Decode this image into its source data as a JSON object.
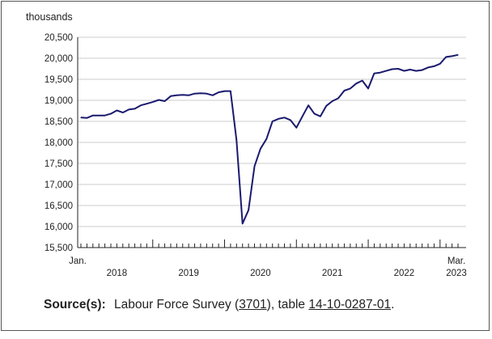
{
  "chart_data": {
    "type": "line",
    "title": "",
    "unit_label": "thousands",
    "xlabel": "",
    "ylabel": "",
    "ylim": [
      15500,
      20500
    ],
    "y_ticks": [
      "20,500",
      "20,000",
      "19,500",
      "19,000",
      "18,500",
      "18,000",
      "17,500",
      "17,000",
      "16,500",
      "16,000",
      "15,500"
    ],
    "grid": true,
    "x_start_label": "Jan.",
    "x_end_label": "Mar.",
    "x_end_year": "2023",
    "year_labels": [
      "2018",
      "2019",
      "2020",
      "2021",
      "2022"
    ],
    "series_color": "#1a1a6e",
    "series": [
      {
        "values": [
          18590,
          18580,
          18640,
          18640,
          18640,
          18680,
          18760,
          18710,
          18780,
          18800,
          18880,
          18920,
          18960,
          19010,
          18980,
          19100,
          19120,
          19130,
          19120,
          19160,
          19170,
          19160,
          19120,
          19190,
          19220,
          19220,
          18050,
          16070,
          16390,
          17430,
          17850,
          18080,
          18500,
          18560,
          18590,
          18530,
          18350,
          18620,
          18880,
          18680,
          18620,
          18870,
          18980,
          19050,
          19230,
          19280,
          19400,
          19470,
          19280,
          19640,
          19660,
          19700,
          19740,
          19750,
          19700,
          19730,
          19700,
          19720,
          19780,
          19810,
          19870,
          20030,
          20050,
          20080
        ]
      }
    ]
  },
  "footer": {
    "source_label": "Source(s):",
    "text_1": "Labour Force Survey (",
    "survey_number": "3701",
    "text_2": "), table ",
    "table_number": "14-10-0287-01",
    "text_3": "."
  }
}
